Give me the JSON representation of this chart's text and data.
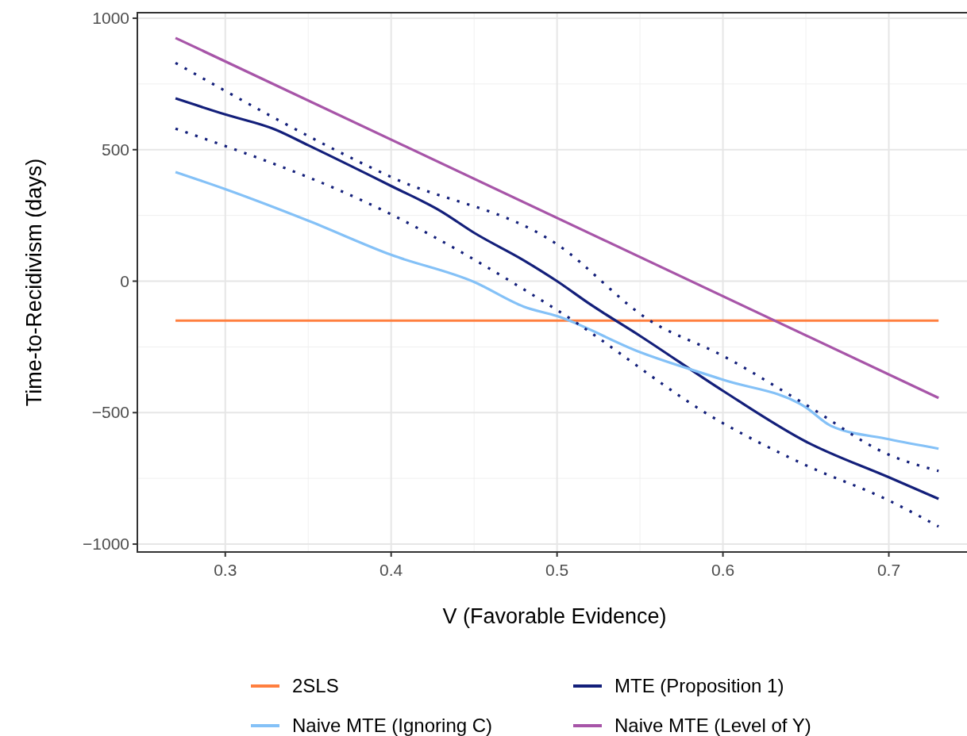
{
  "chart_data": {
    "type": "line",
    "xlabel": "V (Favorable Evidence)",
    "ylabel": "Time-to-Recidivism (days)",
    "xlim": [
      0.247,
      0.75
    ],
    "ylim": [
      -1030,
      1021
    ],
    "xticks": [
      0.3,
      0.4,
      0.5,
      0.6,
      0.7
    ],
    "yticks": [
      {
        "value": -1000,
        "label": "−1000"
      },
      {
        "value": -500,
        "label": "−500"
      },
      0,
      500,
      1000
    ],
    "grid": true,
    "legend": "bottom",
    "line_style": "solid",
    "series": [
      {
        "name": "2SLS",
        "color": "#ff7f3f",
        "x": [
          0.27,
          0.73
        ],
        "values": [
          -150,
          -150
        ]
      },
      {
        "name": "MTE (Proposition 1)",
        "color": "#131f7a",
        "x": [
          0.27,
          0.3,
          0.33,
          0.35,
          0.4,
          0.43,
          0.45,
          0.48,
          0.5,
          0.52,
          0.55,
          0.6,
          0.65,
          0.7,
          0.73
        ],
        "values": [
          695,
          634,
          577,
          517,
          362,
          266,
          184,
          79,
          0,
          -88,
          -208,
          -417,
          -610,
          -746,
          -828
        ]
      },
      {
        "name": "Naive MTE (Ignoring C)",
        "color": "#84c1f7",
        "x": [
          0.27,
          0.3,
          0.35,
          0.4,
          0.45,
          0.48,
          0.5,
          0.55,
          0.6,
          0.65,
          0.665,
          0.7,
          0.73
        ],
        "values": [
          415,
          350,
          230,
          100,
          -3,
          -97,
          -133,
          -270,
          -375,
          -480,
          -550,
          -601,
          -637
        ]
      },
      {
        "name": "Naive MTE (Level of Y)",
        "color": "#a755a8",
        "x": [
          0.27,
          0.73
        ],
        "values": [
          925,
          -444
        ]
      },
      {
        "color": "#131f7a",
        "line_style": "dotted",
        "x": [
          0.27,
          0.4,
          0.5,
          0.556,
          0.6,
          0.65,
          0.7,
          0.73
        ],
        "values": [
          830,
          396,
          140,
          -150,
          -284,
          -470,
          -660,
          -722
        ]
      },
      {
        "color": "#131f7a",
        "line_style": "dotted",
        "x": [
          0.27,
          0.4,
          0.5,
          0.6,
          0.65,
          0.7,
          0.73
        ],
        "values": [
          580,
          254,
          -110,
          -540,
          -700,
          -834,
          -933
        ]
      }
    ]
  }
}
